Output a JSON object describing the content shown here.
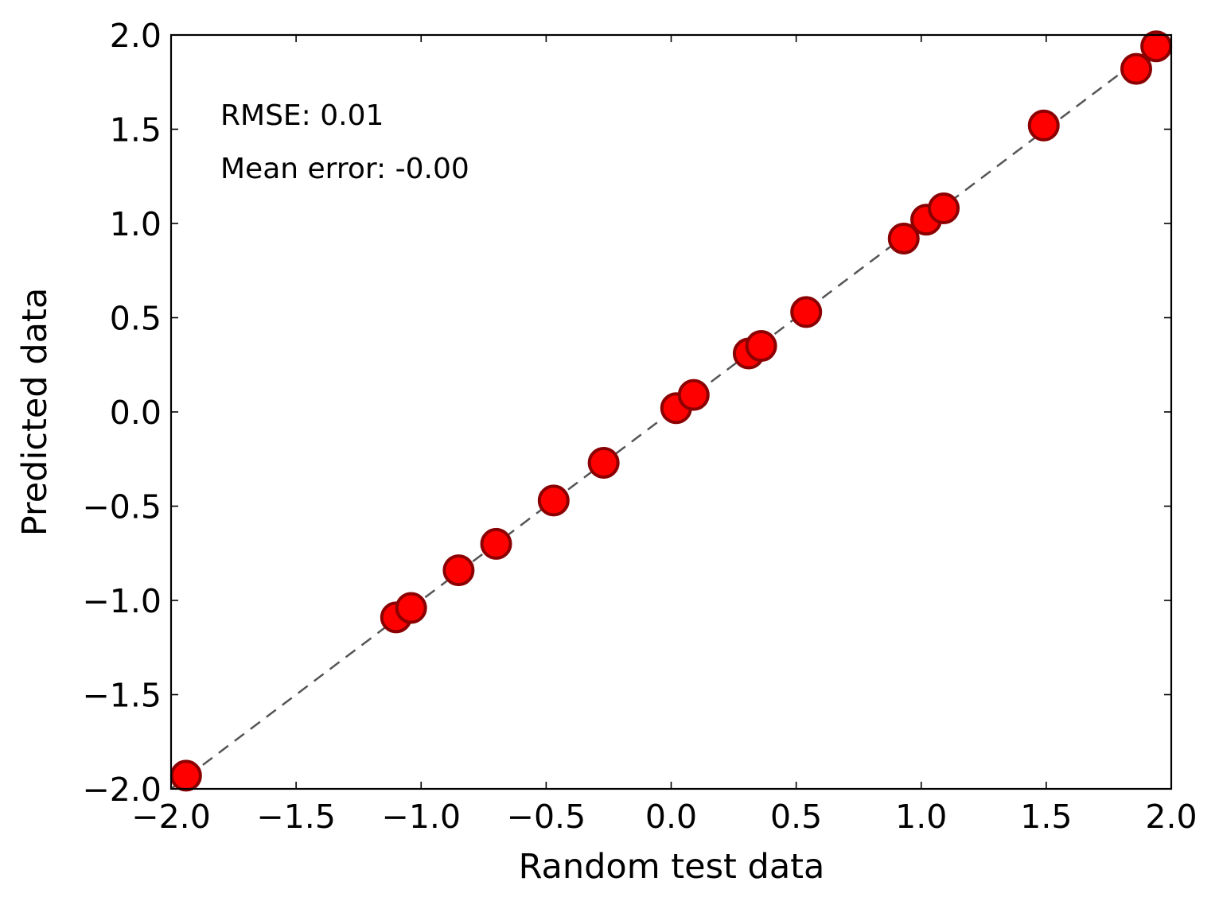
{
  "chart_data": {
    "type": "scatter",
    "xlabel": "Random test data",
    "ylabel": "Predicted data",
    "xlim": [
      -2.0,
      2.0
    ],
    "ylim": [
      -2.0,
      2.0
    ],
    "xticks": [
      -2.0,
      -1.5,
      -1.0,
      -0.5,
      0.0,
      0.5,
      1.0,
      1.5,
      2.0
    ],
    "yticks": [
      -2.0,
      -1.5,
      -1.0,
      -0.5,
      0.0,
      0.5,
      1.0,
      1.5,
      2.0
    ],
    "xtick_labels": [
      "−2.0",
      "−1.5",
      "−1.0",
      "−0.5",
      "0.0",
      "0.5",
      "1.0",
      "1.5",
      "2.0"
    ],
    "ytick_labels": [
      "−2.0",
      "−1.5",
      "−1.0",
      "−0.5",
      "0.0",
      "0.5",
      "1.0",
      "1.5",
      "2.0"
    ],
    "annotations": [
      "RMSE: 0.01",
      "Mean error: -0.00"
    ],
    "reference_line": {
      "x": [
        -2.0,
        2.0
      ],
      "y": [
        -2.0,
        2.0
      ],
      "style": "dashed",
      "color": "#555555"
    },
    "grid": false,
    "legend": "none",
    "marker_color": "#ff0000",
    "marker_edge_color": "#8b0000",
    "series": [
      {
        "x": [
          -1.94,
          -1.1,
          -1.04,
          -0.85,
          -0.7,
          -0.47,
          -0.27,
          0.02,
          0.09,
          0.31,
          0.36,
          0.54,
          0.93,
          1.02,
          1.09,
          1.49,
          1.86,
          1.94
        ],
        "y": [
          -1.93,
          -1.09,
          -1.04,
          -0.84,
          -0.7,
          -0.47,
          -0.27,
          0.02,
          0.09,
          0.31,
          0.35,
          0.53,
          0.92,
          1.02,
          1.08,
          1.52,
          1.82,
          1.94
        ]
      }
    ]
  }
}
